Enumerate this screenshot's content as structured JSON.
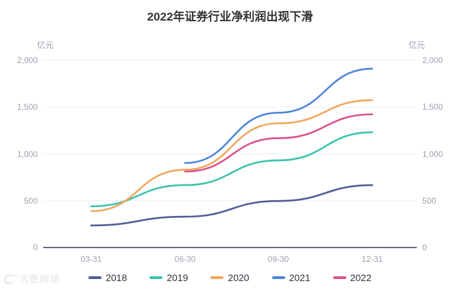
{
  "header": {
    "title": "2022年证券行业净利润出现下滑"
  },
  "y_axis": {
    "left_unit": "亿元",
    "right_unit": "亿元"
  },
  "watermark": {
    "text": "大数跨境"
  },
  "chart_data": {
    "type": "line",
    "title": "2022年证券行业净利润出现下滑",
    "ylabel": "亿元",
    "xlabel": "",
    "smooth": true,
    "grid": true,
    "legend_position": "bottom",
    "categories": [
      "03-31",
      "06-30",
      "09-30",
      "12-31"
    ],
    "series": [
      {
        "name": "2018",
        "color": "#4f5e96",
        "values": [
          236,
          329,
          497,
          666
        ]
      },
      {
        "name": "2019",
        "color": "#3bc2af",
        "values": [
          440,
          667,
          931,
          1231
        ]
      },
      {
        "name": "2020",
        "color": "#f2a65c",
        "values": [
          389,
          831,
          1327,
          1575
        ]
      },
      {
        "name": "2021",
        "color": "#4c86d8",
        "values": [
          null,
          903,
          1440,
          1911
        ]
      },
      {
        "name": "2022",
        "color": "#d9528c",
        "values": [
          null,
          812,
          1168,
          1423
        ]
      }
    ],
    "ylim": [
      0,
      2000
    ],
    "y_ticks": [
      0,
      500,
      1000,
      1500,
      2000
    ],
    "y_tick_labels": [
      "0",
      "500",
      "1,000",
      "1,500",
      "2,000"
    ],
    "colors": {
      "grid_line": "#edeff4",
      "axis_line": "#646b7d",
      "tick_text": "#9aa0ab",
      "title_text": "#333333",
      "legend_text": "#2e323c"
    }
  }
}
